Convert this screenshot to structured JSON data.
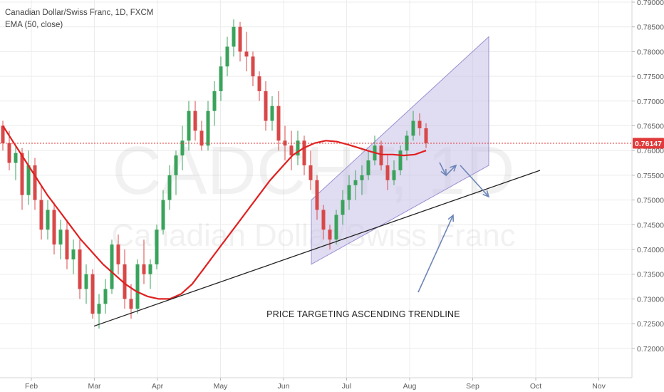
{
  "header": {
    "symbol_line": "Canadian Dollar/Swiss Franc, 1D, FXCM",
    "indicator_line": "EMA (50, close)"
  },
  "watermark": {
    "symbol": "CADCHF, 1D",
    "name": "Canadian Dollar/Swiss Franc"
  },
  "annotation": {
    "text": "PRICE TARGETING ASCENDING TRENDLINE"
  },
  "colors": {
    "up": "#3aa35b",
    "down": "#d94848",
    "ema": "#e02020",
    "channel_fill": "#c7bfe8",
    "channel_stroke": "#9a8fd0",
    "trendline": "#222222",
    "arrow": "#6d86b8",
    "last_price_bg": "#e03a3a",
    "grid": "#ececec"
  },
  "chart_data": {
    "type": "candlestick",
    "title": "Canadian Dollar/Swiss Franc, 1D, FXCM",
    "indicator": "EMA (50, close)",
    "x_ticks": [
      "Feb",
      "Mar",
      "Apr",
      "May",
      "Jun",
      "Jul",
      "Aug",
      "Sep",
      "Oct",
      "Nov"
    ],
    "y_ticks": [
      "0.72000",
      "0.72500",
      "0.73000",
      "0.73500",
      "0.74000",
      "0.74500",
      "0.75000",
      "0.75500",
      "0.76000",
      "0.76500",
      "0.77000",
      "0.77500",
      "0.78000",
      "0.78500",
      "0.79000"
    ],
    "ylim": [
      0.72,
      0.79
    ],
    "last_price": "0.76147",
    "candles": [
      [
        0.765,
        0.766,
        0.76,
        0.7615
      ],
      [
        0.7615,
        0.764,
        0.756,
        0.7575
      ],
      [
        0.7575,
        0.761,
        0.754,
        0.7595
      ],
      [
        0.7595,
        0.7605,
        0.748,
        0.751
      ],
      [
        0.751,
        0.76,
        0.749,
        0.757
      ],
      [
        0.757,
        0.7585,
        0.748,
        0.75
      ],
      [
        0.75,
        0.753,
        0.742,
        0.744
      ],
      [
        0.744,
        0.75,
        0.742,
        0.748
      ],
      [
        0.748,
        0.7495,
        0.739,
        0.741
      ],
      [
        0.741,
        0.746,
        0.738,
        0.744
      ],
      [
        0.744,
        0.746,
        0.736,
        0.738
      ],
      [
        0.738,
        0.742,
        0.735,
        0.74
      ],
      [
        0.74,
        0.742,
        0.73,
        0.732
      ],
      [
        0.732,
        0.737,
        0.729,
        0.735
      ],
      [
        0.735,
        0.736,
        0.726,
        0.727
      ],
      [
        0.727,
        0.731,
        0.724,
        0.729
      ],
      [
        0.729,
        0.734,
        0.727,
        0.732
      ],
      [
        0.732,
        0.742,
        0.731,
        0.741
      ],
      [
        0.741,
        0.743,
        0.735,
        0.737
      ],
      [
        0.737,
        0.74,
        0.728,
        0.73
      ],
      [
        0.73,
        0.733,
        0.726,
        0.728
      ],
      [
        0.728,
        0.738,
        0.727,
        0.737
      ],
      [
        0.737,
        0.742,
        0.733,
        0.735
      ],
      [
        0.735,
        0.738,
        0.732,
        0.737
      ],
      [
        0.737,
        0.745,
        0.736,
        0.744
      ],
      [
        0.744,
        0.752,
        0.743,
        0.75
      ],
      [
        0.75,
        0.757,
        0.748,
        0.755
      ],
      [
        0.755,
        0.76,
        0.751,
        0.759
      ],
      [
        0.759,
        0.765,
        0.756,
        0.762
      ],
      [
        0.762,
        0.77,
        0.76,
        0.768
      ],
      [
        0.768,
        0.77,
        0.762,
        0.764
      ],
      [
        0.764,
        0.766,
        0.76,
        0.761
      ],
      [
        0.761,
        0.77,
        0.76,
        0.768
      ],
      [
        0.768,
        0.774,
        0.765,
        0.772
      ],
      [
        0.772,
        0.779,
        0.77,
        0.777
      ],
      [
        0.777,
        0.783,
        0.775,
        0.781
      ],
      [
        0.781,
        0.7865,
        0.779,
        0.785
      ],
      [
        0.785,
        0.786,
        0.778,
        0.78
      ],
      [
        0.78,
        0.784,
        0.776,
        0.779
      ],
      [
        0.779,
        0.78,
        0.773,
        0.775
      ],
      [
        0.775,
        0.776,
        0.77,
        0.772
      ],
      [
        0.772,
        0.774,
        0.764,
        0.766
      ],
      [
        0.766,
        0.771,
        0.764,
        0.769
      ],
      [
        0.769,
        0.772,
        0.76,
        0.762
      ],
      [
        0.762,
        0.765,
        0.758,
        0.761
      ],
      [
        0.761,
        0.764,
        0.756,
        0.759
      ],
      [
        0.759,
        0.764,
        0.757,
        0.762
      ],
      [
        0.762,
        0.763,
        0.755,
        0.757
      ],
      [
        0.757,
        0.76,
        0.752,
        0.754
      ],
      [
        0.754,
        0.755,
        0.746,
        0.748
      ],
      [
        0.748,
        0.749,
        0.742,
        0.744
      ],
      [
        0.744,
        0.745,
        0.74,
        0.742
      ],
      [
        0.742,
        0.748,
        0.741,
        0.747
      ],
      [
        0.747,
        0.752,
        0.745,
        0.75
      ],
      [
        0.75,
        0.755,
        0.748,
        0.753
      ],
      [
        0.753,
        0.756,
        0.75,
        0.754
      ],
      [
        0.754,
        0.757,
        0.751,
        0.755
      ],
      [
        0.755,
        0.76,
        0.754,
        0.758
      ],
      [
        0.758,
        0.763,
        0.757,
        0.761
      ],
      [
        0.761,
        0.762,
        0.756,
        0.757
      ],
      [
        0.757,
        0.759,
        0.752,
        0.754
      ],
      [
        0.754,
        0.758,
        0.753,
        0.756
      ],
      [
        0.756,
        0.761,
        0.755,
        0.76
      ],
      [
        0.76,
        0.764,
        0.758,
        0.763
      ],
      [
        0.763,
        0.768,
        0.762,
        0.766
      ],
      [
        0.766,
        0.7675,
        0.763,
        0.7645
      ],
      [
        0.7645,
        0.7655,
        0.7605,
        0.7615
      ]
    ],
    "ema_50": [
      0.765,
      0.7615,
      0.758,
      0.7545,
      0.751,
      0.748,
      0.745,
      0.742,
      0.7395,
      0.737,
      0.735,
      0.733,
      0.7315,
      0.7305,
      0.73,
      0.73,
      0.731,
      0.733,
      0.736,
      0.739,
      0.742,
      0.745,
      0.748,
      0.751,
      0.754,
      0.7565,
      0.759,
      0.7605,
      0.7615,
      0.762,
      0.7618,
      0.7612,
      0.7605,
      0.7598,
      0.7592,
      0.7592,
      0.759,
      0.7592,
      0.76
    ],
    "channel": {
      "lower_start": 0.737,
      "upper_start": 0.75,
      "lower_end": 0.757,
      "upper_end": 0.783
    },
    "trendline": {
      "start": 0.7245,
      "end": 0.756
    }
  }
}
